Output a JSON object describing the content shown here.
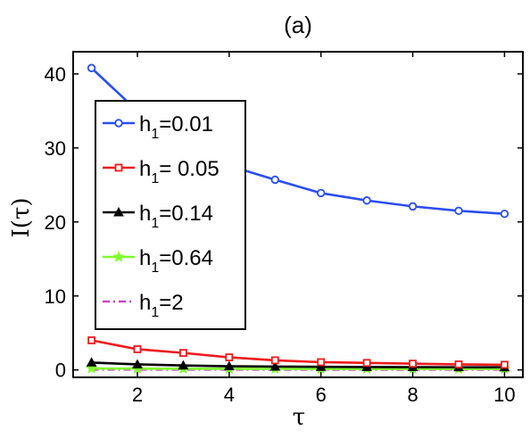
{
  "chart_data": {
    "type": "line",
    "title": "(a)",
    "xlabel": "τ",
    "ylabel": "I(τ)",
    "xlim": [
      0.6,
      10.4
    ],
    "ylim": [
      -1,
      43
    ],
    "xticks": [
      2,
      4,
      6,
      8,
      10
    ],
    "yticks": [
      0,
      10,
      20,
      30,
      40
    ],
    "grid": false,
    "legend_position": "center-left",
    "x": [
      1,
      2,
      3,
      4,
      5,
      6,
      7,
      8,
      9,
      10
    ],
    "series": [
      {
        "name": "h1=0.01",
        "legend_main": "h",
        "legend_sub": "1",
        "legend_rest": "=0.01",
        "color": "#2b4ef0",
        "marker": "circle",
        "dash": "",
        "values": [
          40.8,
          35.0,
          30.5,
          27.6,
          25.7,
          23.9,
          22.9,
          22.1,
          21.5,
          21.1
        ]
      },
      {
        "name": "h1= 0.05",
        "legend_main": "h",
        "legend_sub": "1",
        "legend_rest": "= 0.05",
        "color": "#ee1b1b",
        "marker": "square",
        "dash": "",
        "values": [
          4.0,
          2.8,
          2.3,
          1.7,
          1.3,
          1.05,
          0.95,
          0.85,
          0.75,
          0.7
        ]
      },
      {
        "name": "h1=0.14",
        "legend_main": "h",
        "legend_sub": "1",
        "legend_rest": "=0.14",
        "color": "#000000",
        "marker": "triangle",
        "dash": "",
        "values": [
          1.0,
          0.75,
          0.6,
          0.5,
          0.45,
          0.42,
          0.4,
          0.38,
          0.37,
          0.36
        ]
      },
      {
        "name": "h1=0.64",
        "legend_main": "h",
        "legend_sub": "1",
        "legend_rest": "=0.64",
        "color": "#7fff2a",
        "marker": "star",
        "dash": "",
        "values": [
          0.2,
          0.18,
          0.16,
          0.15,
          0.15,
          0.14,
          0.14,
          0.14,
          0.13,
          0.13
        ]
      },
      {
        "name": "h1=2",
        "legend_main": "h",
        "legend_sub": "1",
        "legend_rest": "=2",
        "color": "#cc44cc",
        "marker": "none",
        "dash": "8,4,2,4",
        "values": [
          0.05,
          0.05,
          0.05,
          0.05,
          0.05,
          0.05,
          0.05,
          0.05,
          0.05,
          0.05
        ]
      }
    ]
  }
}
